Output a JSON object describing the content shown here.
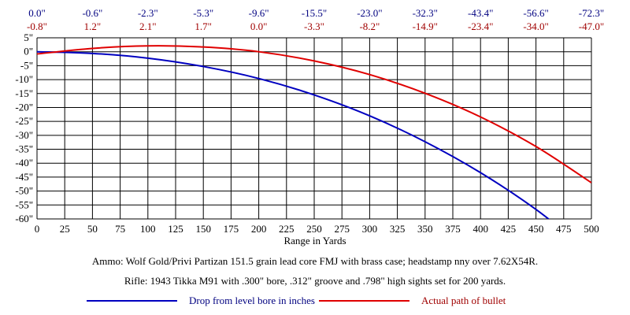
{
  "chart_data": {
    "type": "line",
    "xlabel": "Range in Yards",
    "ylabel": "",
    "xlim": [
      0,
      500
    ],
    "ylim": [
      -60,
      5
    ],
    "x_ticks": [
      0,
      25,
      50,
      75,
      100,
      125,
      150,
      175,
      200,
      225,
      250,
      275,
      300,
      325,
      350,
      375,
      400,
      425,
      450,
      475,
      500
    ],
    "y_ticks": [
      5,
      0,
      -5,
      -10,
      -15,
      -20,
      -25,
      -30,
      -35,
      -40,
      -45,
      -50,
      -55,
      -60
    ],
    "y_tick_labels": [
      "5\"",
      "0\"",
      "-5\"",
      "-10\"",
      "-15\"",
      "-20\"",
      "-25\"",
      "-30\"",
      "-35\"",
      "-40\"",
      "-45\"",
      "-50\"",
      "-55\"",
      "-60\""
    ],
    "grid": true,
    "x": [
      0,
      50,
      100,
      150,
      200,
      250,
      300,
      350,
      400,
      450,
      500
    ],
    "series": [
      {
        "name": "Drop from level bore in inches",
        "color": "#0000c0",
        "text_color": "#000080",
        "values": [
          0.0,
          -0.6,
          -2.3,
          -5.3,
          -9.6,
          -15.5,
          -23.0,
          -32.3,
          -43.4,
          -56.6,
          -72.3
        ],
        "labels": [
          "0.0\"",
          "-0.6\"",
          "-2.3\"",
          "-5.3\"",
          "-9.6\"",
          "-15.5\"",
          "-23.0\"",
          "-32.3\"",
          "-43.4\"",
          "-56.6\"",
          "-72.3\""
        ]
      },
      {
        "name": "Actual path of bullet",
        "color": "#e00000",
        "text_color": "#a00000",
        "values": [
          -0.8,
          1.2,
          2.1,
          1.7,
          0.0,
          -3.3,
          -8.2,
          -14.9,
          -23.4,
          -34.0,
          -47.0
        ],
        "labels": [
          "-0.8\"",
          "1.2\"",
          "2.1\"",
          "1.7\"",
          "0.0\"",
          "-3.3\"",
          "-8.2\"",
          "-14.9\"",
          "-23.4\"",
          "-34.0\"",
          "-47.0\""
        ]
      }
    ],
    "legend": "bottom"
  },
  "notes": {
    "ammo": "Ammo:  Wolf Gold/Privi Partizan 151.5 grain lead core FMJ with brass case; headstamp nny over 7.62X54R.",
    "rifle": "Rifle:  1943 Tikka M91 with .300\" bore, .312\" groove and .798\" high sights set for 200 yards."
  }
}
